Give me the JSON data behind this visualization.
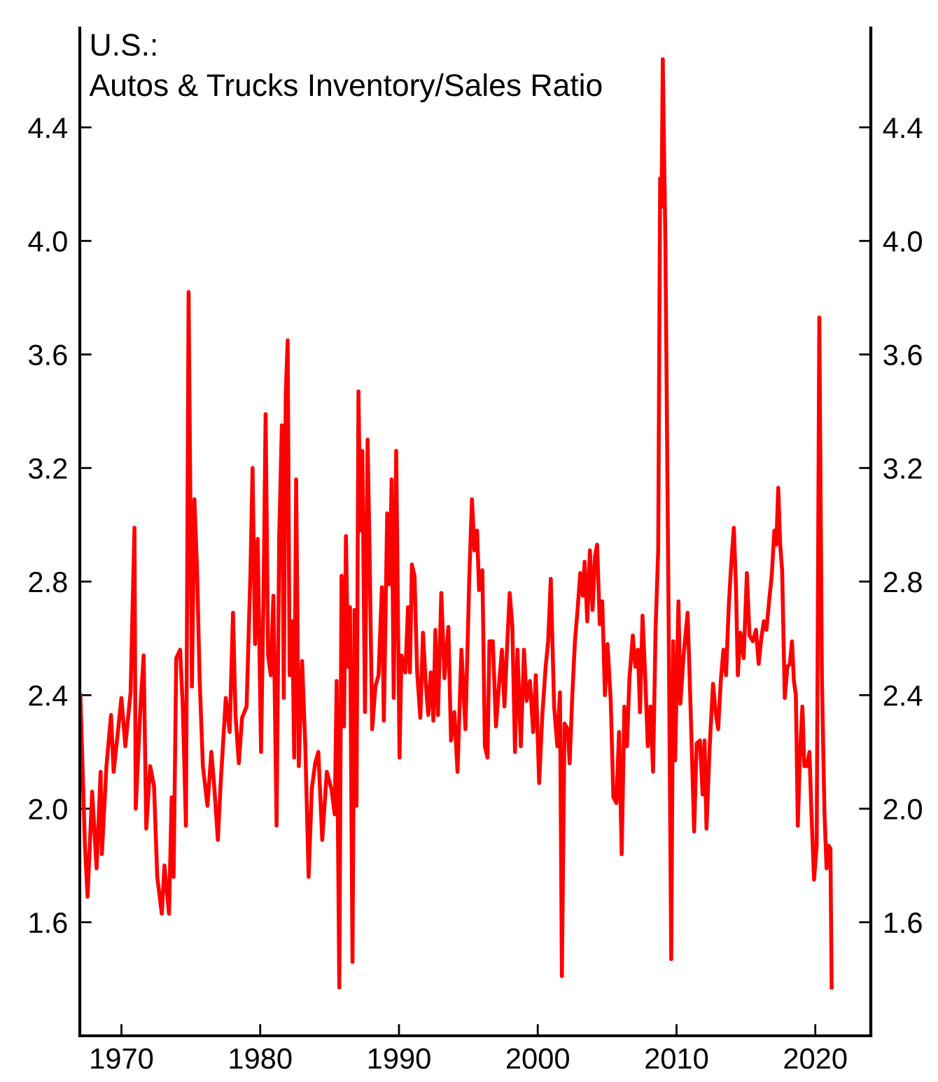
{
  "chart_data": {
    "type": "line",
    "title": "U.S.:",
    "subtitle": "Autos & Trucks Inventory/Sales Ratio",
    "x": [
      1967.04,
      1967.37,
      1967.56,
      1967.89,
      1968.21,
      1968.5,
      1968.59,
      1968.92,
      1969.25,
      1969.44,
      1970.0,
      1970.28,
      1970.66,
      1970.94,
      1971.03,
      1971.36,
      1971.6,
      1971.79,
      1972.07,
      1972.35,
      1972.58,
      1972.91,
      1973.1,
      1973.43,
      1973.62,
      1973.76,
      1973.95,
      1974.23,
      1974.42,
      1974.65,
      1974.84,
      1975.08,
      1975.26,
      1975.45,
      1975.64,
      1975.87,
      1976.2,
      1976.48,
      1976.67,
      1976.95,
      1977.14,
      1977.52,
      1977.8,
      1978.04,
      1978.22,
      1978.46,
      1978.69,
      1979.02,
      1979.3,
      1979.45,
      1979.63,
      1979.82,
      1980.06,
      1980.24,
      1980.39,
      1980.57,
      1980.76,
      1980.95,
      1981.18,
      1981.37,
      1981.56,
      1981.7,
      1981.84,
      1981.98,
      1982.12,
      1982.31,
      1982.45,
      1982.59,
      1982.78,
      1983.02,
      1983.25,
      1983.49,
      1983.72,
      1983.96,
      1984.19,
      1984.47,
      1984.8,
      1985.13,
      1985.37,
      1985.51,
      1985.7,
      1985.86,
      1986.04,
      1986.18,
      1986.33,
      1986.47,
      1986.65,
      1986.8,
      1986.94,
      1987.08,
      1987.22,
      1987.36,
      1987.55,
      1987.74,
      1987.88,
      1988.07,
      1988.3,
      1988.53,
      1988.77,
      1988.91,
      1989.15,
      1989.33,
      1989.47,
      1989.62,
      1989.8,
      1990.04,
      1990.18,
      1990.46,
      1990.65,
      1990.79,
      1990.93,
      1991.12,
      1991.31,
      1991.54,
      1991.73,
      1991.92,
      1992.11,
      1992.29,
      1992.48,
      1992.62,
      1992.81,
      1993.05,
      1993.28,
      1993.56,
      1993.75,
      1993.99,
      1994.22,
      1994.5,
      1994.79,
      1995.07,
      1995.26,
      1995.44,
      1995.63,
      1995.77,
      1996.01,
      1996.19,
      1996.38,
      1996.52,
      1996.76,
      1996.99,
      1997.23,
      1997.42,
      1997.6,
      1997.79,
      1997.98,
      1998.17,
      1998.36,
      1998.54,
      1998.78,
      1999.01,
      1999.2,
      1999.44,
      1999.67,
      1999.86,
      2000.1,
      2000.33,
      2000.57,
      2000.75,
      2000.94,
      2001.18,
      2001.41,
      2001.6,
      2001.74,
      2001.93,
      2002.16,
      2002.3,
      2002.49,
      2002.68,
      2002.87,
      2003.06,
      2003.24,
      2003.38,
      2003.57,
      2003.76,
      2003.95,
      2004.13,
      2004.28,
      2004.47,
      2004.65,
      2004.84,
      2005.03,
      2005.26,
      2005.45,
      2005.67,
      2005.86,
      2006.05,
      2006.24,
      2006.43,
      2006.61,
      2006.85,
      2007.04,
      2007.22,
      2007.37,
      2007.55,
      2007.74,
      2007.93,
      2008.12,
      2008.31,
      2008.49,
      2008.68,
      2008.82,
      2008.92,
      2009.01,
      2009.2,
      2009.43,
      2009.62,
      2009.76,
      2009.9,
      2010.14,
      2010.28,
      2010.51,
      2010.8,
      2010.98,
      2011.27,
      2011.45,
      2011.69,
      2011.88,
      2012.02,
      2012.16,
      2012.39,
      2012.63,
      2012.82,
      2013.0,
      2013.19,
      2013.38,
      2013.57,
      2013.76,
      2013.94,
      2014.13,
      2014.28,
      2014.42,
      2014.6,
      2014.84,
      2015.07,
      2015.26,
      2015.5,
      2015.73,
      2015.92,
      2016.11,
      2016.29,
      2016.48,
      2016.67,
      2016.86,
      2017.05,
      2017.19,
      2017.33,
      2017.47,
      2017.61,
      2017.8,
      2017.99,
      2018.17,
      2018.32,
      2018.46,
      2018.6,
      2018.74,
      2018.88,
      2019.07,
      2019.21,
      2019.4,
      2019.58,
      2019.72,
      2019.91,
      2020.1,
      2020.29,
      2020.48,
      2020.66,
      2020.81,
      2020.95,
      2021.09,
      2021.18
    ],
    "series": [
      {
        "color": "#ff0000",
        "values": [
          2.4,
          1.87,
          1.69,
          2.06,
          1.79,
          2.13,
          1.84,
          2.15,
          2.33,
          2.13,
          2.39,
          2.22,
          2.41,
          2.99,
          2.0,
          2.35,
          2.54,
          1.93,
          2.15,
          2.08,
          1.76,
          1.63,
          1.8,
          1.63,
          2.04,
          1.76,
          2.53,
          2.56,
          2.36,
          1.94,
          3.82,
          2.43,
          3.09,
          2.84,
          2.45,
          2.15,
          2.01,
          2.2,
          2.09,
          1.89,
          2.08,
          2.39,
          2.27,
          2.69,
          2.33,
          2.16,
          2.32,
          2.36,
          2.84,
          3.2,
          2.58,
          2.95,
          2.2,
          2.75,
          3.39,
          2.54,
          2.47,
          2.75,
          1.94,
          2.96,
          3.35,
          2.39,
          3.46,
          3.65,
          2.47,
          2.66,
          2.18,
          3.16,
          2.15,
          2.52,
          2.22,
          1.76,
          2.07,
          2.16,
          2.2,
          1.89,
          2.13,
          2.07,
          1.98,
          2.45,
          1.37,
          2.82,
          2.29,
          2.96,
          2.5,
          2.71,
          1.46,
          2.7,
          2.01,
          3.47,
          2.98,
          3.26,
          2.34,
          3.3,
          2.91,
          2.28,
          2.43,
          2.47,
          2.78,
          2.31,
          3.04,
          2.79,
          3.16,
          2.39,
          3.26,
          2.18,
          2.54,
          2.48,
          2.71,
          2.48,
          2.86,
          2.82,
          2.48,
          2.32,
          2.62,
          2.45,
          2.33,
          2.48,
          2.31,
          2.63,
          2.33,
          2.76,
          2.46,
          2.64,
          2.24,
          2.34,
          2.13,
          2.56,
          2.28,
          2.82,
          3.09,
          2.91,
          2.98,
          2.77,
          2.84,
          2.22,
          2.18,
          2.59,
          2.59,
          2.29,
          2.45,
          2.56,
          2.36,
          2.57,
          2.76,
          2.64,
          2.2,
          2.56,
          2.22,
          2.56,
          2.38,
          2.45,
          2.27,
          2.47,
          2.09,
          2.33,
          2.5,
          2.59,
          2.81,
          2.36,
          2.22,
          2.41,
          1.41,
          2.3,
          2.28,
          2.16,
          2.4,
          2.59,
          2.7,
          2.83,
          2.75,
          2.87,
          2.66,
          2.91,
          2.7,
          2.89,
          2.93,
          2.65,
          2.73,
          2.4,
          2.58,
          2.38,
          2.04,
          2.02,
          2.27,
          1.84,
          2.36,
          2.22,
          2.46,
          2.61,
          2.5,
          2.56,
          2.34,
          2.68,
          2.47,
          2.22,
          2.36,
          2.13,
          2.63,
          2.91,
          4.22,
          4.12,
          4.64,
          3.99,
          2.68,
          1.47,
          2.59,
          2.17,
          2.73,
          2.37,
          2.54,
          2.69,
          2.41,
          1.92,
          2.23,
          2.24,
          2.05,
          2.24,
          1.93,
          2.22,
          2.44,
          2.34,
          2.28,
          2.45,
          2.56,
          2.47,
          2.71,
          2.86,
          2.99,
          2.79,
          2.47,
          2.62,
          2.53,
          2.83,
          2.61,
          2.59,
          2.63,
          2.51,
          2.6,
          2.66,
          2.63,
          2.73,
          2.82,
          2.98,
          2.93,
          3.13,
          2.93,
          2.84,
          2.39,
          2.5,
          2.51,
          2.59,
          2.45,
          2.4,
          1.94,
          2.17,
          2.36,
          2.15,
          2.15,
          2.2,
          1.99,
          1.75,
          1.87,
          3.73,
          2.45,
          1.99,
          1.79,
          1.87,
          1.86,
          1.37
        ]
      }
    ],
    "xlim": [
      1967.0,
      2024.0
    ],
    "xticks": [
      1970,
      1980,
      1990,
      2000,
      2010,
      2020
    ],
    "ylim": [
      1.2,
      4.75
    ],
    "yticks": [
      1.6,
      {
        "value": 2,
        "label": "2.0"
      },
      2.4,
      2.8,
      3.2,
      3.6,
      {
        "value": 4,
        "label": "4.0"
      },
      4.4
    ],
    "y2lim": [
      1.2,
      4.75
    ],
    "y2ticks": [
      1.6,
      {
        "value": 2,
        "label": "2.0"
      },
      2.4,
      2.8,
      3.2,
      3.6,
      {
        "value": 4,
        "label": "4.0"
      },
      4.4
    ],
    "grid": false,
    "legend": false
  }
}
